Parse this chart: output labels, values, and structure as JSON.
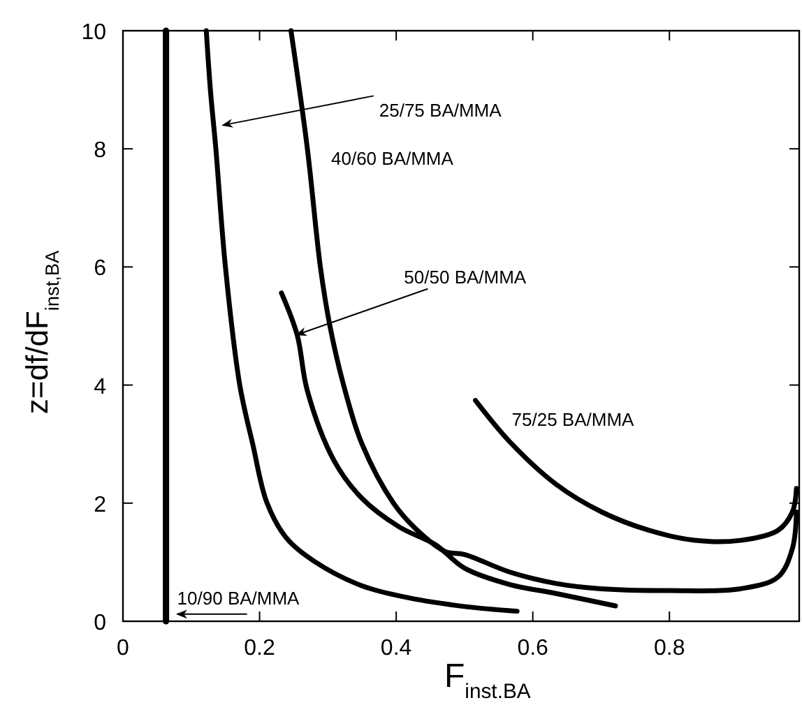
{
  "chart_data": {
    "type": "line",
    "xlabel": "F$_{inst.BA}$",
    "ylabel": "z=df/dF$_{inst,BA}$",
    "xlim": [
      0,
      0.99
    ],
    "ylim": [
      0,
      10
    ],
    "xticks": [
      0,
      0.2,
      0.4,
      0.6,
      0.8
    ],
    "yticks": [
      0,
      2,
      4,
      6,
      8,
      10
    ],
    "grid": false,
    "marker": "none",
    "line_style": "solid",
    "series": [
      {
        "color": "#000000",
        "x": [
          0.063,
          0.063
        ],
        "values": [
          0,
          10
        ]
      },
      {
        "color": "#000000",
        "x": [
          0.122,
          0.128,
          0.136,
          0.15,
          0.171,
          0.19,
          0.211,
          0.24,
          0.282,
          0.35,
          0.417,
          0.5,
          0.577
        ],
        "values": [
          10,
          9,
          8,
          6,
          4,
          3,
          2,
          1.4,
          1,
          0.6,
          0.4,
          0.25,
          0.17
        ]
      },
      {
        "color": "#000000",
        "x": [
          0.246,
          0.27,
          0.289,
          0.303,
          0.323,
          0.35,
          0.396,
          0.43,
          0.472,
          0.5,
          0.567,
          0.634,
          0.7,
          0.8,
          0.904,
          0.959,
          0.98,
          0.986
        ],
        "values": [
          10,
          8,
          6,
          5,
          4,
          3,
          2,
          1.55,
          1.18,
          1.13,
          0.83,
          0.64,
          0.55,
          0.52,
          0.55,
          0.75,
          1.23,
          1.85
        ]
      },
      {
        "color": "#000000",
        "x": [
          0.232,
          0.255,
          0.27,
          0.309,
          0.35,
          0.404,
          0.457,
          0.5,
          0.567,
          0.634,
          0.721
        ],
        "values": [
          5.56,
          4.85,
          3.9,
          2.72,
          2.08,
          1.6,
          1.3,
          0.9,
          0.62,
          0.47,
          0.26
        ]
      },
      {
        "color": "#000000",
        "x": [
          0.516,
          0.567,
          0.634,
          0.701,
          0.77,
          0.837,
          0.904,
          0.959,
          0.98,
          0.986
        ],
        "values": [
          3.74,
          3.03,
          2.32,
          1.85,
          1.54,
          1.37,
          1.37,
          1.54,
          1.85,
          2.25
        ]
      }
    ],
    "annotations": [
      {
        "text": "10/90 BA/MMA",
        "x": 0.063,
        "y": 0.12
      },
      {
        "text": "25/75 BA/MMA",
        "x": 0.146,
        "y": 8.4
      },
      {
        "text": "40/60 BA/MMA",
        "x": 0.27,
        "y": 7.85
      },
      {
        "text": "50/50 BA/MMA",
        "x": 0.254,
        "y": 4.85
      },
      {
        "text": "75/25 BA/MMA",
        "x": 0.516,
        "y": 3.74
      }
    ]
  }
}
